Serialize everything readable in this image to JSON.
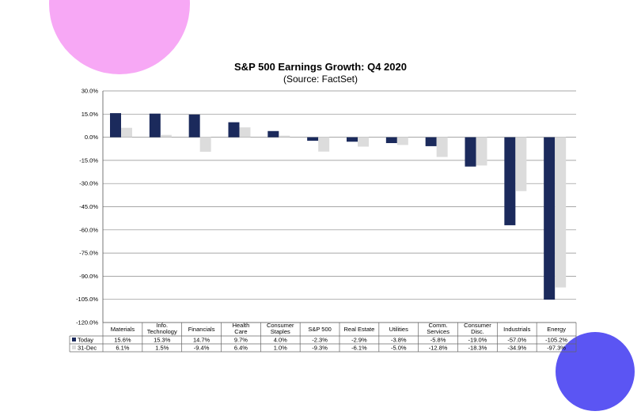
{
  "colors": {
    "pink_circle": "#f7a8f5",
    "blue_circle": "#5b55f3",
    "today": "#1b2a5c",
    "dec31": "#dcdcdc"
  },
  "chart_data": {
    "type": "bar",
    "title": "S&P 500 Earnings Growth: Q4 2020",
    "subtitle": "(Source: FactSet)",
    "categories": [
      [
        "Materials"
      ],
      [
        "Info.",
        "Technology"
      ],
      [
        "Financials"
      ],
      [
        "Health",
        "Care"
      ],
      [
        "Consumer",
        "Staples"
      ],
      [
        "S&P 500"
      ],
      [
        "Real Estate"
      ],
      [
        "Utilities"
      ],
      [
        "Comm.",
        "Services"
      ],
      [
        "Consumer",
        "Disc."
      ],
      [
        "Industrials"
      ],
      [
        "Energy"
      ]
    ],
    "series": [
      {
        "name": "Today",
        "values": [
          15.6,
          15.3,
          14.7,
          9.7,
          4.0,
          -2.3,
          -2.9,
          -3.8,
          -5.8,
          -19.0,
          -57.0,
          -105.2
        ],
        "labels": [
          "15.6%",
          "15.3%",
          "14.7%",
          "9.7%",
          "4.0%",
          "-2.3%",
          "-2.9%",
          "-3.8%",
          "-5.8%",
          "-19.0%",
          "-57.0%",
          "-105.2%"
        ]
      },
      {
        "name": "31-Dec",
        "values": [
          6.1,
          1.5,
          -9.4,
          6.4,
          1.0,
          -9.3,
          -6.1,
          -5.0,
          -12.8,
          -18.3,
          -34.9,
          -97.3
        ],
        "labels": [
          "6.1%",
          "1.5%",
          "-9.4%",
          "6.4%",
          "1.0%",
          "-9.3%",
          "-6.1%",
          "-5.0%",
          "-12.8%",
          "-18.3%",
          "-34.9%",
          "-97.3%"
        ]
      }
    ],
    "ylim": [
      -120,
      30
    ],
    "yticks": [
      30,
      15,
      0,
      -15,
      -30,
      -45,
      -60,
      -75,
      -90,
      -105,
      -120
    ],
    "ytick_labels": [
      "30.0%",
      "15.0%",
      "0.0%",
      "-15.0%",
      "-30.0%",
      "-45.0%",
      "-60.0%",
      "-75.0%",
      "-90.0%",
      "-105.0%",
      "-120.0%"
    ],
    "grid": true,
    "legend": "data-table"
  }
}
